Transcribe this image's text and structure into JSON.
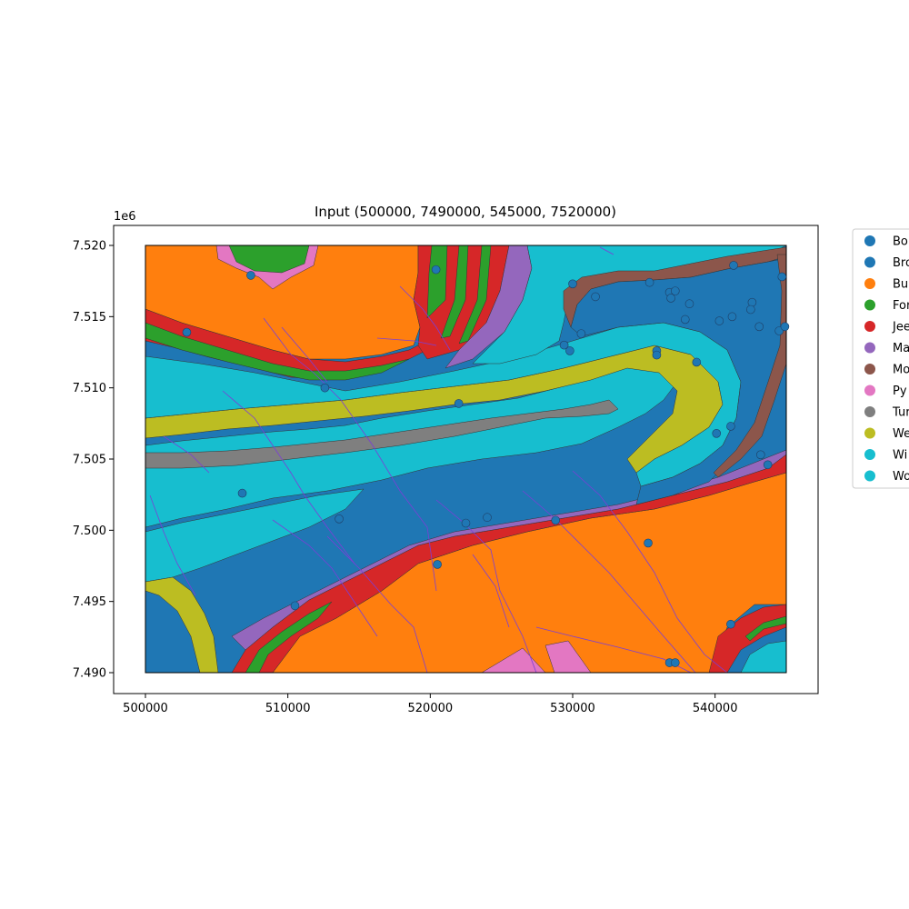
{
  "figure": {
    "title": "Input (500000, 7490000, 545000, 7520000)",
    "y_offset_label": "1e6"
  },
  "chart_data": {
    "type": "map",
    "title": "Input (500000, 7490000, 545000, 7520000)",
    "extent": [
      500000,
      7490000,
      545000,
      7520000
    ],
    "xlim": [
      497800,
      547300
    ],
    "ylim": [
      7488600,
      7521400
    ],
    "x_ticks": [
      {
        "value": 500000,
        "label": "500000"
      },
      {
        "value": 510000,
        "label": "510000"
      },
      {
        "value": 520000,
        "label": "520000"
      },
      {
        "value": 530000,
        "label": "530000"
      },
      {
        "value": 540000,
        "label": "540000"
      }
    ],
    "y_ticks": [
      {
        "value": 7490000,
        "label": "7.490"
      },
      {
        "value": 7495000,
        "label": "7.495"
      },
      {
        "value": 7500000,
        "label": "7.500"
      },
      {
        "value": 7505000,
        "label": "7.505"
      },
      {
        "value": 7510000,
        "label": "7.510"
      },
      {
        "value": 7515000,
        "label": "7.515"
      },
      {
        "value": 7520000,
        "label": "7.520"
      }
    ],
    "legend": {
      "placement": "upper-right-outside",
      "entries": [
        {
          "label": "Bo",
          "color": "#1f77b4"
        },
        {
          "label": "Bro",
          "color": "#1f77b4"
        },
        {
          "label": "Bu",
          "color": "#ff7f0e"
        },
        {
          "label": "For",
          "color": "#2ca02c"
        },
        {
          "label": "Jee",
          "color": "#d62728"
        },
        {
          "label": "Ma",
          "color": "#9467bd"
        },
        {
          "label": "Mo",
          "color": "#8c564b"
        },
        {
          "label": "Py",
          "color": "#e377c2"
        },
        {
          "label": "Tur",
          "color": "#7f7f7f"
        },
        {
          "label": "We",
          "color": "#bcbd22"
        },
        {
          "label": "Wi",
          "color": "#17becf"
        },
        {
          "label": "Wo",
          "color": "#17becf"
        }
      ]
    },
    "points": [
      {
        "x": 507400,
        "y": 7517900
      },
      {
        "x": 502900,
        "y": 7513900
      },
      {
        "x": 520400,
        "y": 7518300
      },
      {
        "x": 512600,
        "y": 7510000
      },
      {
        "x": 522000,
        "y": 7508900
      },
      {
        "x": 506800,
        "y": 7502600
      },
      {
        "x": 513600,
        "y": 7500800
      },
      {
        "x": 522500,
        "y": 7500500
      },
      {
        "x": 524000,
        "y": 7500900
      },
      {
        "x": 528800,
        "y": 7500700
      },
      {
        "x": 535300,
        "y": 7499100
      },
      {
        "x": 520500,
        "y": 7497600
      },
      {
        "x": 510500,
        "y": 7494700
      },
      {
        "x": 529400,
        "y": 7513000
      },
      {
        "x": 529800,
        "y": 7512600
      },
      {
        "x": 530600,
        "y": 7513800
      },
      {
        "x": 530000,
        "y": 7517300
      },
      {
        "x": 531600,
        "y": 7516400
      },
      {
        "x": 535400,
        "y": 7517400
      },
      {
        "x": 536800,
        "y": 7516700
      },
      {
        "x": 537200,
        "y": 7516800
      },
      {
        "x": 536900,
        "y": 7516300
      },
      {
        "x": 538200,
        "y": 7515900
      },
      {
        "x": 537900,
        "y": 7514800
      },
      {
        "x": 535900,
        "y": 7512600
      },
      {
        "x": 535900,
        "y": 7512300
      },
      {
        "x": 538700,
        "y": 7511800
      },
      {
        "x": 540300,
        "y": 7514700
      },
      {
        "x": 541200,
        "y": 7515000
      },
      {
        "x": 542600,
        "y": 7516000
      },
      {
        "x": 542500,
        "y": 7515500
      },
      {
        "x": 543100,
        "y": 7514300
      },
      {
        "x": 544500,
        "y": 7514000
      },
      {
        "x": 544900,
        "y": 7514300
      },
      {
        "x": 544700,
        "y": 7517800
      },
      {
        "x": 541300,
        "y": 7518600
      },
      {
        "x": 540100,
        "y": 7506800
      },
      {
        "x": 541100,
        "y": 7507300
      },
      {
        "x": 543200,
        "y": 7505300
      },
      {
        "x": 543700,
        "y": 7504600
      },
      {
        "x": 541100,
        "y": 7493400
      },
      {
        "x": 536800,
        "y": 7490700
      },
      {
        "x": 537200,
        "y": 7490700
      }
    ]
  }
}
